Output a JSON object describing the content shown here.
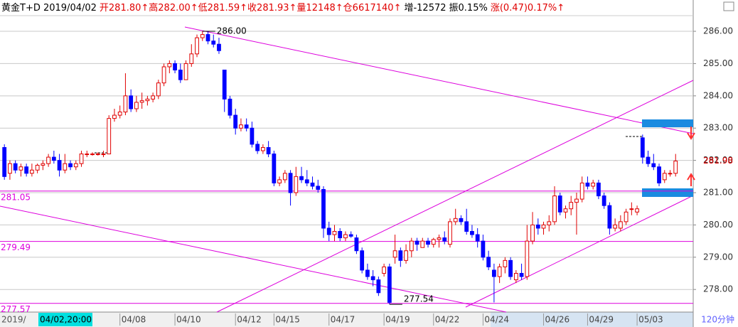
{
  "chart_data": {
    "type": "candlestick",
    "header": [
      {
        "text": "黄金T+D 2019/04/02",
        "color": "#000000"
      },
      {
        "text": "开281.80↑高282.00↑低281.59↑收281.93↑量12148↑仓6617140↑",
        "color": "#e00000"
      },
      {
        "text": "增-12572",
        "color": "#000000"
      },
      {
        "text": "振0.15%",
        "color": "#000000"
      },
      {
        "text": "涨(0.47)0.17%↑",
        "color": "#e00000"
      }
    ],
    "up_color": "#e00000",
    "down_color": "#0000ff",
    "ylim": [
      277.3,
      286.97
    ],
    "yticks": [
      {
        "value": 278,
        "label": "278.00"
      },
      {
        "value": 279,
        "label": "279.00"
      },
      {
        "value": 280,
        "label": "280.00"
      },
      {
        "value": 281,
        "label": "281.00"
      },
      {
        "value": 282,
        "label": "282.00"
      },
      {
        "value": 283,
        "label": "283.00"
      },
      {
        "value": 284,
        "label": "284.00"
      },
      {
        "value": 285,
        "label": "285.00"
      },
      {
        "value": 286,
        "label": "286.00"
      }
    ],
    "grid": true,
    "xlim": [
      -0.8,
      125.2
    ],
    "cursor_label": {
      "prefix": "2019/",
      "text": "04/02,20:00"
    },
    "xticks": [
      {
        "value": 21,
        "label": "04/08"
      },
      {
        "value": 31,
        "label": "04/10"
      },
      {
        "value": 42,
        "label": "04/12"
      },
      {
        "value": 49,
        "label": "04/15"
      },
      {
        "value": 59,
        "label": "04/17"
      },
      {
        "value": 69,
        "label": "04/19"
      },
      {
        "value": 78,
        "label": "04/22"
      },
      {
        "value": 87,
        "label": "04/24"
      },
      {
        "value": 98,
        "label": "04/26"
      },
      {
        "value": 106,
        "label": "04/29"
      },
      {
        "value": 115,
        "label": "05/03"
      }
    ],
    "period": "120分钟",
    "levels": [
      {
        "value": 281.05,
        "label": "281.05"
      },
      {
        "value": 279.49,
        "label": "279.49"
      },
      {
        "value": 277.57,
        "label": "277.57"
      }
    ],
    "level_color": "#dd00dd",
    "high_marker": {
      "value": 286.0,
      "label": "286.00"
    },
    "low_marker": {
      "value": 277.54,
      "label": "277.54"
    },
    "last_price": {
      "value": 281.98,
      "label": "281.98"
    },
    "ohlc": [
      [
        282.4,
        282.5,
        281.4,
        281.5
      ],
      [
        281.6,
        282.0,
        281.4,
        281.9
      ],
      [
        281.9,
        282.0,
        281.6,
        281.7
      ],
      [
        281.7,
        281.9,
        281.5,
        281.8
      ],
      [
        281.8,
        281.9,
        281.5,
        281.6
      ],
      [
        281.6,
        281.9,
        281.5,
        281.7
      ],
      [
        281.7,
        281.9,
        281.6,
        281.85
      ],
      [
        281.85,
        282.0,
        281.7,
        281.9
      ],
      [
        281.9,
        282.2,
        281.8,
        282.1
      ],
      [
        282.1,
        282.3,
        281.9,
        282.0
      ],
      [
        282.0,
        282.2,
        281.5,
        281.7
      ],
      [
        281.7,
        282.2,
        281.6,
        281.9
      ],
      [
        281.9,
        282.0,
        281.7,
        281.8
      ],
      [
        281.8,
        282.0,
        281.7,
        281.9
      ],
      [
        281.9,
        282.3,
        281.8,
        282.2
      ],
      [
        282.2,
        282.3,
        282.1,
        282.2
      ],
      [
        282.2,
        282.25,
        282.15,
        282.2
      ],
      [
        282.2,
        282.25,
        282.15,
        282.2
      ],
      [
        282.2,
        282.3,
        282.1,
        282.2
      ],
      [
        282.2,
        283.4,
        282.2,
        283.3
      ],
      [
        283.3,
        283.6,
        283.2,
        283.4
      ],
      [
        283.4,
        283.7,
        283.3,
        283.5
      ],
      [
        283.5,
        284.7,
        283.4,
        284.0
      ],
      [
        284.0,
        284.2,
        283.5,
        283.6
      ],
      [
        283.6,
        284.0,
        283.5,
        283.8
      ],
      [
        283.8,
        284.1,
        283.6,
        283.85
      ],
      [
        283.85,
        284.0,
        283.7,
        283.9
      ],
      [
        283.9,
        284.1,
        283.8,
        284.0
      ],
      [
        284.0,
        284.5,
        283.9,
        284.4
      ],
      [
        284.4,
        285.0,
        284.3,
        284.9
      ],
      [
        284.9,
        285.1,
        284.7,
        285.0
      ],
      [
        285.0,
        285.1,
        284.7,
        284.8
      ],
      [
        284.8,
        285.0,
        284.4,
        284.5
      ],
      [
        284.5,
        285.1,
        284.5,
        285.0
      ],
      [
        285.0,
        285.6,
        284.9,
        285.3
      ],
      [
        285.3,
        285.9,
        285.2,
        285.8
      ],
      [
        285.8,
        286.0,
        285.7,
        285.9
      ],
      [
        285.9,
        286.0,
        285.6,
        285.7
      ],
      [
        285.7,
        285.9,
        285.5,
        285.6
      ],
      [
        285.6,
        285.8,
        285.3,
        285.4
      ],
      [
        284.8,
        284.8,
        283.5,
        283.9
      ],
      [
        283.9,
        284.0,
        283.3,
        283.4
      ],
      [
        283.4,
        283.6,
        282.8,
        283.0
      ],
      [
        283.0,
        283.3,
        282.9,
        283.1
      ],
      [
        283.1,
        283.3,
        282.9,
        283.0
      ],
      [
        283.0,
        283.2,
        282.4,
        282.5
      ],
      [
        282.5,
        282.6,
        282.2,
        282.3
      ],
      [
        282.3,
        282.5,
        282.2,
        282.4
      ],
      [
        282.4,
        282.6,
        282.1,
        282.2
      ],
      [
        282.2,
        282.3,
        281.2,
        281.3
      ],
      [
        281.3,
        281.5,
        281.2,
        281.4
      ],
      [
        281.4,
        281.7,
        281.3,
        281.6
      ],
      [
        281.6,
        281.7,
        280.6,
        281.0
      ],
      [
        281.0,
        281.8,
        280.9,
        281.5
      ],
      [
        281.5,
        281.8,
        281.3,
        281.4
      ],
      [
        281.4,
        281.7,
        281.2,
        281.3
      ],
      [
        281.3,
        281.5,
        281.1,
        281.2
      ],
      [
        281.2,
        281.4,
        281.0,
        281.1
      ],
      [
        281.1,
        281.2,
        279.6,
        279.9
      ],
      [
        279.9,
        280.1,
        279.5,
        279.7
      ],
      [
        279.7,
        280.0,
        279.5,
        279.8
      ],
      [
        279.8,
        279.9,
        279.5,
        279.6
      ],
      [
        279.6,
        279.8,
        279.5,
        279.7
      ],
      [
        279.7,
        279.8,
        279.6,
        279.65
      ],
      [
        279.6,
        279.7,
        279.1,
        279.2
      ],
      [
        279.2,
        279.3,
        278.5,
        278.6
      ],
      [
        278.6,
        278.8,
        278.3,
        278.4
      ],
      [
        278.4,
        278.6,
        278.1,
        278.3
      ],
      [
        278.3,
        278.4,
        277.8,
        277.9
      ],
      [
        278.5,
        278.8,
        278.4,
        278.7
      ],
      [
        278.7,
        278.8,
        277.54,
        277.6
      ],
      [
        279.0,
        279.7,
        278.8,
        279.2
      ],
      [
        279.2,
        279.3,
        278.7,
        278.9
      ],
      [
        278.9,
        279.4,
        278.8,
        279.2
      ],
      [
        279.2,
        279.6,
        279.0,
        279.5
      ],
      [
        279.5,
        279.6,
        279.2,
        279.4
      ],
      [
        279.3,
        279.6,
        279.3,
        279.5
      ],
      [
        279.5,
        279.6,
        279.3,
        279.4
      ],
      [
        279.4,
        279.6,
        279.3,
        279.55
      ],
      [
        279.55,
        279.7,
        279.3,
        279.6
      ],
      [
        279.6,
        279.8,
        279.4,
        279.5
      ],
      [
        279.4,
        280.2,
        279.3,
        280.1
      ],
      [
        280.1,
        280.5,
        280.0,
        280.2
      ],
      [
        280.2,
        280.3,
        280.0,
        280.1
      ],
      [
        280.1,
        280.5,
        279.7,
        279.8
      ],
      [
        279.8,
        280.0,
        279.6,
        279.7
      ],
      [
        279.7,
        279.9,
        279.3,
        279.5
      ],
      [
        279.5,
        279.7,
        278.9,
        279.0
      ],
      [
        279.0,
        279.2,
        278.6,
        278.7
      ],
      [
        278.6,
        278.8,
        277.6,
        278.4
      ],
      [
        278.4,
        278.8,
        278.2,
        278.7
      ],
      [
        278.7,
        279.0,
        278.5,
        278.9
      ],
      [
        278.9,
        279.0,
        278.3,
        278.4
      ],
      [
        278.3,
        278.6,
        278.2,
        278.5
      ],
      [
        278.5,
        278.8,
        278.3,
        278.4
      ],
      [
        278.4,
        280.0,
        278.3,
        279.5
      ],
      [
        279.5,
        280.4,
        279.4,
        280.0
      ],
      [
        280.0,
        280.2,
        279.7,
        279.9
      ],
      [
        279.9,
        280.1,
        279.7,
        280.0
      ],
      [
        280.0,
        280.3,
        279.8,
        280.1
      ],
      [
        280.1,
        281.2,
        280.0,
        280.9
      ],
      [
        280.9,
        281.0,
        280.3,
        280.4
      ],
      [
        280.4,
        280.6,
        280.2,
        280.5
      ],
      [
        280.5,
        280.9,
        280.3,
        280.7
      ],
      [
        280.7,
        281.0,
        279.7,
        280.8
      ],
      [
        280.8,
        281.5,
        280.7,
        281.3
      ],
      [
        281.3,
        281.5,
        281.1,
        281.2
      ],
      [
        281.2,
        281.4,
        281.1,
        281.3
      ],
      [
        281.3,
        281.4,
        280.8,
        280.9
      ],
      [
        280.9,
        281.0,
        280.5,
        280.6
      ],
      [
        280.6,
        280.7,
        279.7,
        279.9
      ],
      [
        279.9,
        280.2,
        279.8,
        280.0
      ],
      [
        279.9,
        280.3,
        279.8,
        280.1
      ],
      [
        280.1,
        280.5,
        280.0,
        280.4
      ],
      [
        280.5,
        280.7,
        280.3,
        280.5
      ],
      [
        280.4,
        280.6,
        280.3,
        280.5
      ],
      [
        282.7,
        282.8,
        281.9,
        282.1
      ],
      [
        282.1,
        282.3,
        281.8,
        281.9
      ],
      [
        281.9,
        282.2,
        281.7,
        281.8
      ],
      [
        281.8,
        281.9,
        281.2,
        281.3
      ],
      [
        281.4,
        281.7,
        281.3,
        281.6
      ],
      [
        281.6,
        281.7,
        281.5,
        281.6
      ],
      [
        281.6,
        282.2,
        281.5,
        281.98
      ]
    ]
  }
}
